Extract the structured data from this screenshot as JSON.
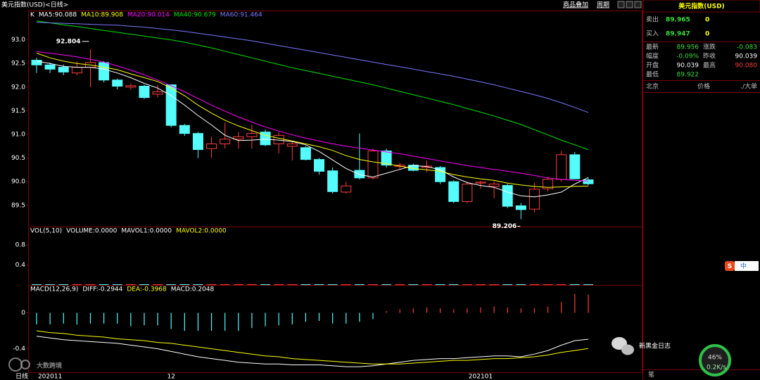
{
  "app": {
    "symbol_tab": "美元指数(USD)<日线>",
    "menu": [
      "商品叠加",
      "周期"
    ]
  },
  "chart_data": [
    {
      "type": "candlestick",
      "legend_label": "K",
      "xlabel": "日线",
      "categories": [
        null,
        "202011",
        null,
        null,
        null,
        null,
        null,
        null,
        null,
        null,
        "12",
        null,
        null,
        null,
        null,
        null,
        null,
        null,
        null,
        null,
        null,
        null,
        null,
        null,
        null,
        null,
        null,
        null,
        null,
        null,
        null,
        null,
        null,
        "202101",
        null,
        null,
        null,
        null,
        null,
        null,
        null,
        null
      ],
      "open": [
        92.57,
        92.47,
        92.42,
        92.3,
        92.42,
        92.52,
        92.15,
        92.0,
        92.02,
        91.85,
        92.05,
        91.19,
        91.02,
        90.7,
        90.8,
        90.9,
        90.95,
        91.05,
        90.8,
        90.75,
        90.72,
        90.47,
        90.23,
        89.78,
        90.24,
        90.08,
        90.65,
        90.32,
        90.35,
        90.3,
        90.3,
        90.0,
        89.58,
        89.97,
        89.9,
        89.92,
        89.49,
        89.42,
        89.85,
        90.05,
        90.57,
        90.039
      ],
      "high": [
        92.62,
        92.52,
        92.48,
        92.55,
        92.804,
        92.55,
        92.18,
        92.08,
        92.05,
        92.05,
        92.05,
        91.22,
        91.05,
        90.95,
        91.25,
        91.05,
        91.2,
        91.1,
        91.05,
        90.85,
        90.75,
        90.5,
        90.3,
        90.0,
        91.02,
        90.7,
        90.7,
        90.4,
        90.38,
        90.45,
        90.33,
        90.03,
        90.0,
        90.02,
        90.02,
        89.95,
        89.55,
        89.98,
        90.1,
        90.65,
        90.63,
        90.08
      ],
      "low": [
        92.3,
        92.3,
        92.25,
        92.25,
        92.0,
        92.1,
        91.95,
        91.95,
        91.75,
        91.78,
        91.15,
        90.97,
        90.5,
        90.5,
        90.7,
        90.7,
        90.7,
        90.75,
        90.6,
        90.45,
        90.45,
        90.15,
        89.75,
        89.75,
        90.05,
        90.05,
        90.3,
        90.25,
        90.22,
        90.2,
        89.95,
        89.55,
        89.55,
        89.85,
        89.65,
        89.44,
        89.206,
        89.35,
        89.8,
        90.0,
        90.05,
        89.922
      ],
      "close": [
        92.47,
        92.38,
        92.32,
        92.42,
        92.52,
        92.15,
        92.02,
        92.03,
        91.78,
        91.9,
        91.19,
        91.02,
        90.68,
        90.8,
        90.9,
        90.95,
        91.02,
        90.78,
        90.98,
        90.8,
        90.47,
        90.22,
        89.79,
        89.91,
        90.08,
        90.65,
        90.35,
        90.35,
        90.24,
        90.33,
        90.0,
        89.58,
        89.95,
        89.99,
        89.95,
        89.48,
        89.41,
        89.84,
        90.05,
        90.57,
        90.06,
        89.956
      ],
      "up_color": "#ff3c3c",
      "down_color": "#54fcfc",
      "ylim": [
        89.05,
        93.62
      ],
      "yticks": [
        {
          "value": 93.0,
          "label": "93.0"
        },
        {
          "value": 92.5,
          "label": "92.5"
        },
        {
          "value": 92.0,
          "label": "92.0"
        },
        {
          "value": 91.5,
          "label": "91.5"
        },
        {
          "value": 91.0,
          "label": "91.0"
        },
        {
          "value": 90.5,
          "label": "90.5"
        },
        {
          "value": 90.0,
          "label": "90.0"
        },
        {
          "value": 89.5,
          "label": "89.5"
        }
      ],
      "grid": false,
      "series": [
        {
          "name": "MA5:90.088",
          "color": "#ffffff",
          "values": [
            92.55,
            92.5,
            92.44,
            92.42,
            92.42,
            92.38,
            92.3,
            92.2,
            92.08,
            91.98,
            91.82,
            91.62,
            91.4,
            91.2,
            90.98,
            90.87,
            90.88,
            90.9,
            90.88,
            90.85,
            90.78,
            90.64,
            90.46,
            90.28,
            90.15,
            90.1,
            90.18,
            90.26,
            90.34,
            90.32,
            90.25,
            90.1,
            89.98,
            89.92,
            89.88,
            89.78,
            89.7,
            89.68,
            89.72,
            89.78,
            89.95,
            90.088
          ]
        },
        {
          "name": "MA10:89.908",
          "color": "#ffff00",
          "values": [
            92.72,
            92.62,
            92.55,
            92.5,
            92.47,
            92.42,
            92.37,
            92.28,
            92.2,
            92.12,
            91.98,
            91.82,
            91.62,
            91.45,
            91.3,
            91.18,
            91.08,
            90.98,
            90.92,
            90.86,
            90.8,
            90.74,
            90.66,
            90.55,
            90.47,
            90.42,
            90.38,
            90.33,
            90.28,
            90.25,
            90.22,
            90.15,
            90.1,
            90.06,
            90.03,
            89.97,
            89.93,
            89.9,
            89.88,
            89.89,
            89.9,
            89.908
          ]
        },
        {
          "name": "MA20:90.014",
          "color": "#ff00ff",
          "values": [
            92.75,
            92.72,
            92.68,
            92.64,
            92.59,
            92.53,
            92.45,
            92.36,
            92.26,
            92.15,
            92.03,
            91.9,
            91.76,
            91.62,
            91.49,
            91.37,
            91.26,
            91.16,
            91.07,
            90.99,
            90.92,
            90.86,
            90.8,
            90.75,
            90.71,
            90.67,
            90.63,
            90.59,
            90.54,
            90.49,
            90.44,
            90.39,
            90.34,
            90.3,
            90.26,
            90.22,
            90.18,
            90.13,
            90.08,
            90.05,
            90.03,
            90.014
          ]
        },
        {
          "name": "MA40:90.679",
          "color": "#00e600",
          "values": [
            93.4,
            93.36,
            93.32,
            93.28,
            93.24,
            93.2,
            93.16,
            93.12,
            93.08,
            93.04,
            93.0,
            92.95,
            92.89,
            92.83,
            92.76,
            92.69,
            92.62,
            92.55,
            92.48,
            92.41,
            92.35,
            92.29,
            92.23,
            92.17,
            92.11,
            92.05,
            91.98,
            91.91,
            91.84,
            91.77,
            91.7,
            91.63,
            91.55,
            91.47,
            91.39,
            91.3,
            91.21,
            91.1,
            90.99,
            90.88,
            90.78,
            90.679
          ]
        },
        {
          "name": "MA60:91.464",
          "color": "#7878ff",
          "values": [
            93.37,
            93.36,
            93.35,
            93.34,
            93.33,
            93.32,
            93.31,
            93.29,
            93.27,
            93.24,
            93.21,
            93.18,
            93.14,
            93.1,
            93.06,
            93.02,
            92.98,
            92.93,
            92.88,
            92.83,
            92.78,
            92.73,
            92.68,
            92.63,
            92.58,
            92.53,
            92.48,
            92.43,
            92.38,
            92.33,
            92.28,
            92.23,
            92.17,
            92.11,
            92.05,
            91.98,
            91.91,
            91.84,
            91.76,
            91.67,
            91.57,
            91.464
          ]
        }
      ]
    },
    {
      "type": "volume",
      "title": "VOL(5,10)",
      "legend": [
        {
          "name": "VOLUME:0.0000",
          "color": "#ffffff"
        },
        {
          "name": "MAVOL1:0.0000",
          "color": "#ffffff"
        },
        {
          "name": "MAVOL2:0.0000",
          "color": "#ffff00"
        }
      ],
      "values": [
        0,
        0,
        0,
        0,
        0,
        0,
        0,
        0,
        0,
        0,
        0,
        0,
        0,
        0,
        0,
        0,
        0,
        0,
        0,
        0,
        0,
        0,
        0,
        0,
        0,
        0,
        0,
        0,
        0,
        0,
        0,
        0,
        0,
        0,
        0,
        0,
        0,
        0,
        0,
        0,
        0,
        0
      ],
      "ylim": [
        0,
        1.17
      ],
      "yticks": [
        0.8,
        0.4
      ]
    },
    {
      "type": "macd",
      "title": "MACD(12,26,9)",
      "histogram_label": "MACD:0.2048",
      "values": [
        -0.13,
        -0.13,
        -0.12,
        -0.13,
        -0.12,
        -0.12,
        -0.12,
        -0.15,
        -0.14,
        -0.14,
        -0.18,
        -0.2,
        -0.2,
        -0.2,
        -0.2,
        -0.2,
        -0.17,
        -0.15,
        -0.14,
        -0.13,
        -0.1,
        -0.09,
        -0.12,
        -0.12,
        -0.1,
        -0.07,
        0.02,
        0.04,
        0.05,
        0.06,
        0.05,
        0.04,
        0.05,
        0.06,
        0.07,
        0.06,
        0.05,
        0.05,
        0.07,
        0.12,
        0.21,
        0.2048
      ],
      "ylim": [
        -0.67,
        0.31
      ],
      "yticks": [
        0,
        -0.4
      ],
      "series": [
        {
          "name": "DIFF:-0.2944",
          "color": "#ffffff",
          "values": [
            -0.26,
            -0.28,
            -0.3,
            -0.31,
            -0.32,
            -0.33,
            -0.34,
            -0.36,
            -0.38,
            -0.4,
            -0.43,
            -0.46,
            -0.49,
            -0.51,
            -0.53,
            -0.55,
            -0.56,
            -0.57,
            -0.57,
            -0.58,
            -0.58,
            -0.58,
            -0.59,
            -0.6,
            -0.6,
            -0.59,
            -0.57,
            -0.55,
            -0.53,
            -0.52,
            -0.51,
            -0.51,
            -0.5,
            -0.49,
            -0.48,
            -0.48,
            -0.49,
            -0.46,
            -0.42,
            -0.36,
            -0.31,
            -0.2944
          ]
        },
        {
          "name": "DEA:-0.3968",
          "color": "#ffff00",
          "values": [
            -0.2,
            -0.22,
            -0.23,
            -0.25,
            -0.26,
            -0.27,
            -0.29,
            -0.3,
            -0.31,
            -0.33,
            -0.34,
            -0.36,
            -0.38,
            -0.4,
            -0.42,
            -0.44,
            -0.46,
            -0.48,
            -0.49,
            -0.51,
            -0.52,
            -0.53,
            -0.54,
            -0.55,
            -0.56,
            -0.57,
            -0.57,
            -0.57,
            -0.56,
            -0.55,
            -0.54,
            -0.53,
            -0.53,
            -0.52,
            -0.51,
            -0.51,
            -0.5,
            -0.49,
            -0.47,
            -0.44,
            -0.42,
            -0.3968
          ]
        }
      ]
    }
  ],
  "quote": {
    "title": "美元指数(USD)",
    "sell": {
      "label": "卖出",
      "price": "89.965",
      "volume": "0"
    },
    "buy": {
      "label": "买入",
      "price": "89.947",
      "volume": "0"
    },
    "rows": [
      [
        {
          "label": "最新",
          "value": "89.956",
          "color": "#3cdc3c"
        },
        {
          "label": "涨跌",
          "value": "-0.083",
          "color": "#3cdc3c"
        }
      ],
      [
        {
          "label": "幅度",
          "value": "-0.09%",
          "color": "#3cdc3c"
        },
        {
          "label": "昨收",
          "value": "90.039",
          "color": "#ffffff"
        }
      ],
      [
        {
          "label": "开盘",
          "value": "90.039",
          "color": "#ffffff"
        },
        {
          "label": "最高",
          "value": "90.080",
          "color": "#ff3c3c"
        }
      ],
      [
        {
          "label": "最低",
          "value": "89.922",
          "color": "#3cdc3c"
        }
      ]
    ],
    "trade_header": [
      "北京",
      "价格",
      "./大单"
    ],
    "footer": "笔"
  },
  "overlay": {
    "watermark_left": "大数跨境",
    "watermark_right": "新黑金日志",
    "speed_percent": "46%",
    "speed_rate": "0.2K/s",
    "ime_logo": "S",
    "ime_label": "中"
  }
}
